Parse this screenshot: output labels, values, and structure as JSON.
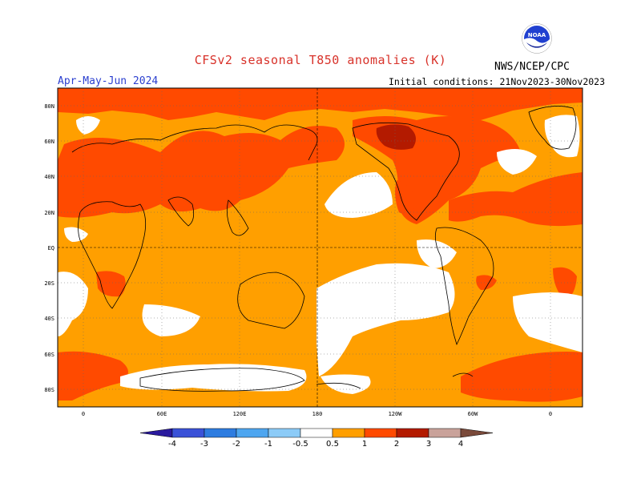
{
  "title": "CFSv2 seasonal T850 anomalies (K)",
  "period": "Apr-May-Jun 2024",
  "initial_conditions": "Initial conditions: 21Nov2023-30Nov2023",
  "agency": "NWS/NCEP/CPC",
  "logo_text": "NOAA",
  "lat_labels": [
    "80N",
    "60N",
    "40N",
    "20N",
    "EQ",
    "20S",
    "40S",
    "60S",
    "80S"
  ],
  "lon_labels": [
    "0",
    "60E",
    "120E",
    "180",
    "120W",
    "60W",
    "0"
  ],
  "legend": {
    "labels": [
      "-4",
      "-3",
      "-2",
      "-1",
      "-0.5",
      "0.5",
      "1",
      "2",
      "3",
      "4"
    ],
    "colors": [
      "#2a1a9e",
      "#3a52d8",
      "#2e7ce0",
      "#4ea6f0",
      "#8ccbf7",
      "#ffffff",
      "#ff9f00",
      "#ff4a00",
      "#b31a00",
      "#c9a29a",
      "#7a4a3a"
    ]
  }
}
